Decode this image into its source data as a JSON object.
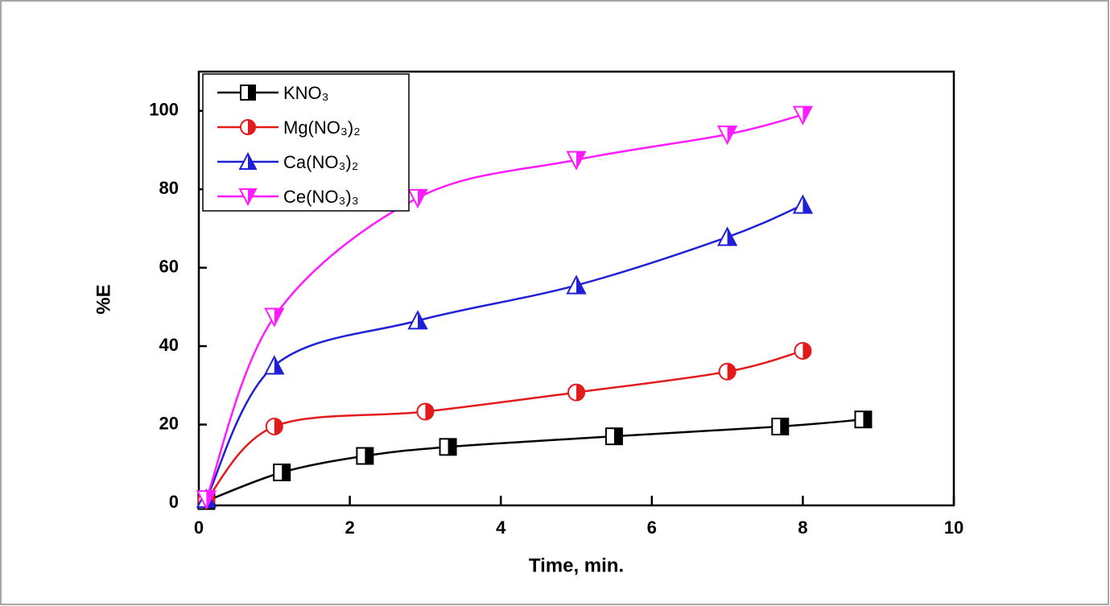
{
  "chart_data": {
    "type": "line",
    "xlabel": "Time, min.",
    "ylabel": "%E",
    "xlim": [
      0,
      10
    ],
    "xticks": [
      0,
      2,
      4,
      6,
      8,
      10
    ],
    "ylim": [
      0,
      110
    ],
    "yticks": [
      0,
      20,
      40,
      60,
      80,
      100
    ],
    "legend": "top-left",
    "series": [
      {
        "name": "KNO₃",
        "color": "#000000",
        "marker": "square",
        "x": [
          0.1,
          1.1,
          2.2,
          3.3,
          5.5,
          7.7,
          8.8
        ],
        "values": [
          0.5,
          7.8,
          12,
          14.3,
          17,
          19.5,
          21.3
        ]
      },
      {
        "name": "Mg(NO₃)₂",
        "color": "#e31a1c",
        "marker": "circle",
        "x": [
          0.1,
          1,
          3,
          5,
          7,
          8
        ],
        "values": [
          0.8,
          19.5,
          23.3,
          28.2,
          33.5,
          38.8
        ]
      },
      {
        "name": "Ca(NO₃)₂",
        "color": "#1f1fd6",
        "marker": "triangle-up",
        "x": [
          0.1,
          1,
          2.9,
          5,
          7,
          8
        ],
        "values": [
          1,
          35,
          46.5,
          55.5,
          67.8,
          76
        ]
      },
      {
        "name": "Ce(NO₃)₃",
        "color": "#ff1aff",
        "marker": "triangle-down",
        "x": [
          0.1,
          1,
          2.9,
          5,
          7,
          8
        ],
        "values": [
          1,
          47.5,
          77.8,
          87.5,
          94,
          99
        ]
      }
    ]
  }
}
